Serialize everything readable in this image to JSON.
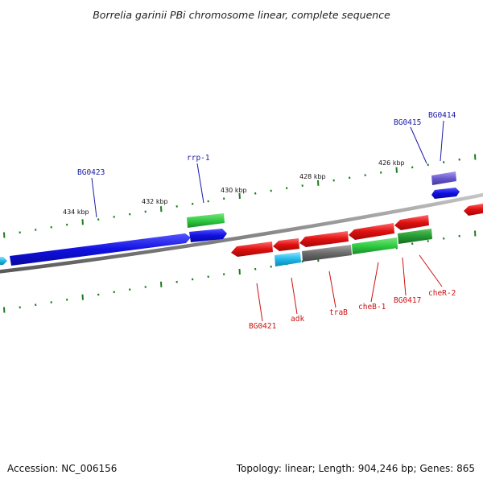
{
  "title": "Borrelia garinii PBi chromosome linear, complete sequence",
  "footer": {
    "accession": "Accession: NC_006156",
    "summary": "Topology: linear; Length: 904,246 bp; Genes: 865"
  },
  "scale_labels": [
    "434 kbp",
    "432 kbp",
    "430 kbp",
    "428 kbp",
    "426 kbp"
  ],
  "genes_top": [
    {
      "label": "BG0423",
      "color": "#1010e0"
    },
    {
      "label": "rrp-1",
      "color": "#1010e0"
    },
    {
      "label": "BG0415",
      "color": "#1010e0"
    },
    {
      "label": "BG0414",
      "color": "#6a5acd"
    }
  ],
  "genes_bottom": [
    {
      "label": "BG0421",
      "color": "#e01010"
    },
    {
      "label": "adk",
      "color": "#1fb8e8"
    },
    {
      "label": "traB",
      "color": "#6b6b6b"
    },
    {
      "label": "cheB-1",
      "color": "#2ecc40"
    },
    {
      "label": "BG0417",
      "color": "#2ecc40"
    },
    {
      "label": "cheR-2",
      "color": "#2ecc40"
    }
  ],
  "colors": {
    "blue": "#1010e0",
    "red": "#e01010",
    "green": "#2ecc40",
    "gray": "#6b6b6b",
    "cyan": "#1fb8e8",
    "purple": "#6a5acd",
    "tick": "#1f7a1f",
    "backbone": "#8a8a8a",
    "label_blue": "#1a1aa8",
    "label_red": "#cc1111"
  }
}
